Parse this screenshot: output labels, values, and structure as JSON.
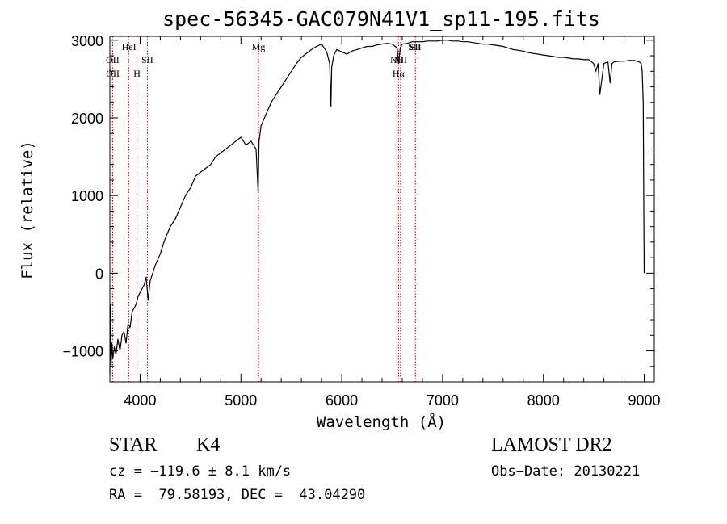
{
  "chart_data": {
    "type": "line",
    "title": "spec-56345-GAC079N41V1_sp11-195.fits",
    "xlabel": "Wavelength (Å)",
    "ylabel": "Flux (relative)",
    "xlim": [
      3700,
      9100
    ],
    "ylim": [
      -1400,
      3050
    ],
    "x_ticks": [
      4000,
      5000,
      6000,
      7000,
      8000,
      9000
    ],
    "y_ticks": [
      -1000,
      0,
      1000,
      2000,
      3000
    ],
    "grid": false,
    "line_color": "#000000",
    "marker_color": "#cc0000",
    "series": [
      {
        "x": [
          3700,
          3705,
          3712,
          3720,
          3730,
          3745,
          3760,
          3780,
          3800,
          3820,
          3840,
          3860,
          3880,
          3900,
          3920,
          3940,
          3960,
          3980,
          4000,
          4020,
          4040,
          4060,
          4080,
          4100,
          4150,
          4200,
          4250,
          4300,
          4350,
          4400,
          4450,
          4500,
          4550,
          4600,
          4650,
          4700,
          4750,
          4800,
          4850,
          4900,
          4950,
          5000,
          5050,
          5100,
          5150,
          5170,
          5180,
          5190,
          5200,
          5250,
          5300,
          5350,
          5400,
          5450,
          5500,
          5550,
          5600,
          5650,
          5700,
          5750,
          5800,
          5850,
          5880,
          5893,
          5900,
          5920,
          5950,
          6000,
          6050,
          6100,
          6150,
          6200,
          6250,
          6300,
          6350,
          6400,
          6450,
          6500,
          6550,
          6563,
          6580,
          6600,
          6650,
          6700,
          6750,
          6800,
          6850,
          6900,
          6950,
          7000,
          7050,
          7100,
          7150,
          7200,
          7250,
          7300,
          7350,
          7400,
          7450,
          7500,
          7550,
          7600,
          7650,
          7700,
          7750,
          7800,
          7850,
          7900,
          7950,
          8000,
          8050,
          8100,
          8150,
          8200,
          8250,
          8300,
          8350,
          8400,
          8450,
          8498,
          8520,
          8542,
          8560,
          8600,
          8640,
          8662,
          8680,
          8700,
          8750,
          8800,
          8850,
          8900,
          8950,
          8970,
          8980,
          8990,
          8995,
          9000
        ],
        "y": [
          -1300,
          -400,
          -1200,
          -900,
          -1100,
          -950,
          -1050,
          -850,
          -1000,
          -800,
          -750,
          -900,
          -650,
          -700,
          -500,
          -450,
          -400,
          -300,
          -250,
          -200,
          -150,
          -50,
          -350,
          -100,
          100,
          250,
          450,
          600,
          700,
          850,
          1000,
          1100,
          1250,
          1300,
          1350,
          1400,
          1500,
          1550,
          1600,
          1650,
          1700,
          1750,
          1650,
          1700,
          1600,
          1050,
          1700,
          1800,
          1900,
          2050,
          2200,
          2300,
          2400,
          2500,
          2600,
          2700,
          2780,
          2830,
          2880,
          2920,
          2950,
          2850,
          2700,
          2150,
          2650,
          2800,
          2880,
          2850,
          2820,
          2860,
          2880,
          2900,
          2920,
          2920,
          2940,
          2950,
          2960,
          2950,
          2900,
          2700,
          2900,
          2950,
          2960,
          2980,
          2980,
          2980,
          2990,
          2990,
          2990,
          3000,
          3000,
          2990,
          2990,
          2980,
          2980,
          2970,
          2960,
          2950,
          2950,
          2940,
          2930,
          2920,
          2900,
          2880,
          2870,
          2860,
          2840,
          2830,
          2820,
          2810,
          2800,
          2790,
          2780,
          2780,
          2770,
          2760,
          2760,
          2750,
          2750,
          2700,
          2600,
          2700,
          2300,
          2700,
          2720,
          2450,
          2700,
          2720,
          2730,
          2730,
          2740,
          2740,
          2720,
          2700,
          2600,
          2200,
          1000,
          0
        ]
      }
    ],
    "line_markers": [
      {
        "x": 3727,
        "label": "OII",
        "tier": 2
      },
      {
        "x": 3729,
        "label": "OII",
        "tier": 3
      },
      {
        "x": 3889,
        "label": "HeI",
        "tier": 1
      },
      {
        "x": 3969,
        "label": "H",
        "tier": 3
      },
      {
        "x": 4072,
        "label": "SII",
        "tier": 2
      },
      {
        "x": 5175,
        "label": "Mg",
        "tier": 1
      },
      {
        "x": 6548,
        "label": "NII",
        "tier": 2
      },
      {
        "x": 6563,
        "label": "Hα",
        "tier": 3
      },
      {
        "x": 6583,
        "label": "NII",
        "tier": 2
      },
      {
        "x": 6717,
        "label": "SII",
        "tier": 1
      },
      {
        "x": 6731,
        "label": "SII",
        "tier": 1
      }
    ]
  },
  "info": {
    "class_label": "STAR",
    "subclass_label": "K4",
    "survey": "LAMOST DR2",
    "velocity": "cz = −119.6 ± 8.1 km/s",
    "obs_date": "Obs−Date: 20130221",
    "coords": "RA =  79.58193, DEC =  43.04290"
  }
}
